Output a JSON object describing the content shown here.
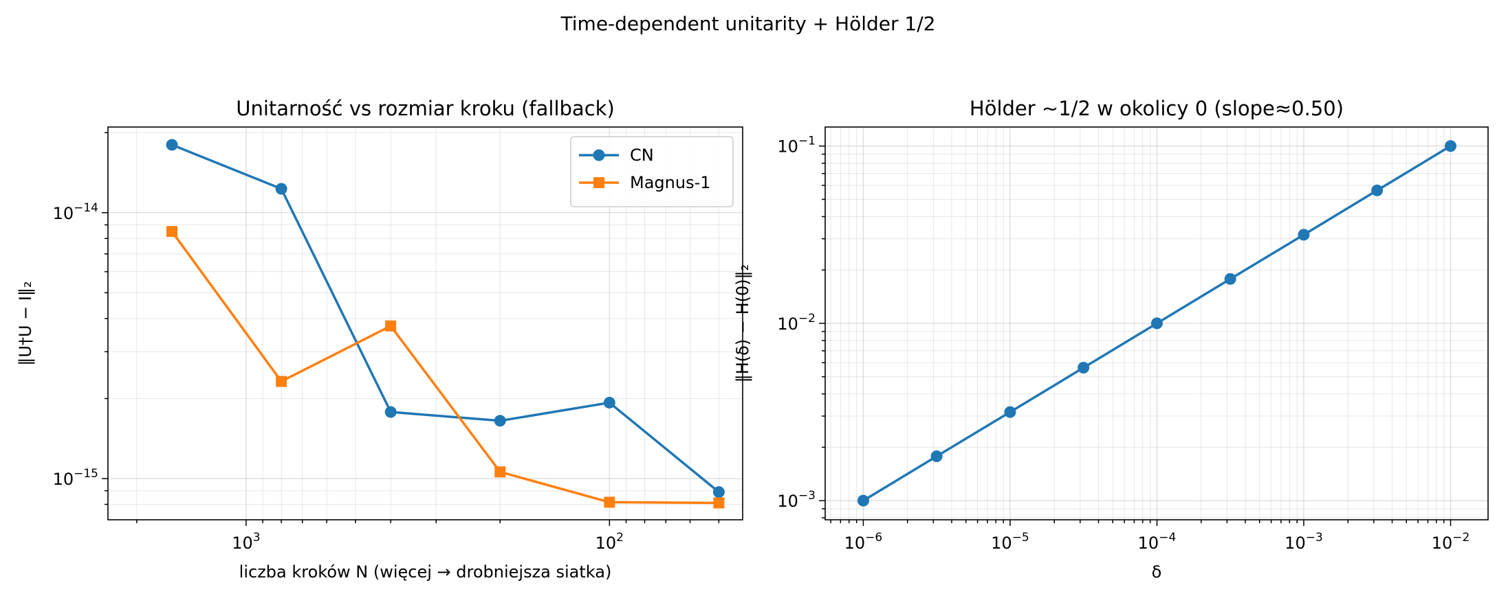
{
  "suptitle": "Time-dependent unitarity + Hölder 1/2",
  "colors": {
    "blue": "#1f77b4",
    "orange": "#ff7f0e",
    "grid": "#b0b0b0"
  },
  "chart_data": [
    {
      "type": "line",
      "title": "Unitarność vs rozmiar kroku (fallback)",
      "xlabel": "liczba kroków N (więcej → drobniejsza siatka)",
      "ylabel": "‖U†U − I‖₂",
      "xscale": "log",
      "yscale": "log",
      "x_inverted": true,
      "xlim": [
        2400,
        43
      ],
      "ylim": [
        7e-16,
        2.1e-14
      ],
      "grid": true,
      "legend": {
        "position": "top-right"
      },
      "xticks": [
        {
          "value": 1000,
          "base": "10",
          "exp": "3"
        },
        {
          "value": 100,
          "base": "10",
          "exp": "2"
        }
      ],
      "yticks": [
        {
          "value": 1e-14,
          "base": "10",
          "exp": "−14"
        },
        {
          "value": 1e-15,
          "base": "10",
          "exp": "−15"
        }
      ],
      "x": [
        1600,
        800,
        400,
        200,
        100,
        50
      ],
      "series": [
        {
          "name": "CN",
          "color": "#1f77b4",
          "marker": "circle",
          "values": [
            1.8e-14,
            1.23e-14,
            1.78e-15,
            1.65e-15,
            1.93e-15,
            8.9e-16
          ]
        },
        {
          "name": "Magnus-1",
          "color": "#ff7f0e",
          "marker": "square",
          "values": [
            8.5e-15,
            2.32e-15,
            3.75e-15,
            1.06e-15,
            8.15e-16,
            8.1e-16
          ]
        }
      ]
    },
    {
      "type": "line",
      "title": "Hölder ~1/2 w okolicy 0 (slope≈0.50)",
      "xlabel": "δ",
      "ylabel": "‖H(δ) − H(0)‖₂",
      "xscale": "log",
      "yscale": "log",
      "xlim": [
        5.5e-07,
        0.018
      ],
      "ylim": [
        0.00078,
        0.128
      ],
      "grid": true,
      "xticks": [
        {
          "value": 1e-06,
          "base": "10",
          "exp": "−6"
        },
        {
          "value": 1e-05,
          "base": "10",
          "exp": "−5"
        },
        {
          "value": 0.0001,
          "base": "10",
          "exp": "−4"
        },
        {
          "value": 0.001,
          "base": "10",
          "exp": "−3"
        },
        {
          "value": 0.01,
          "base": "10",
          "exp": "−2"
        }
      ],
      "yticks": [
        {
          "value": 0.1,
          "base": "10",
          "exp": "−1"
        },
        {
          "value": 0.01,
          "base": "10",
          "exp": "−2"
        },
        {
          "value": 0.001,
          "base": "10",
          "exp": "−3"
        }
      ],
      "x": [
        1e-06,
        3.16e-06,
        1e-05,
        3.16e-05,
        0.0001,
        0.000316,
        0.001,
        0.00316,
        0.01
      ],
      "series": [
        {
          "color": "#1f77b4",
          "marker": "circle",
          "values": [
            0.001,
            0.00178,
            0.00316,
            0.00562,
            0.01,
            0.0178,
            0.0316,
            0.0562,
            0.1
          ]
        }
      ]
    }
  ]
}
